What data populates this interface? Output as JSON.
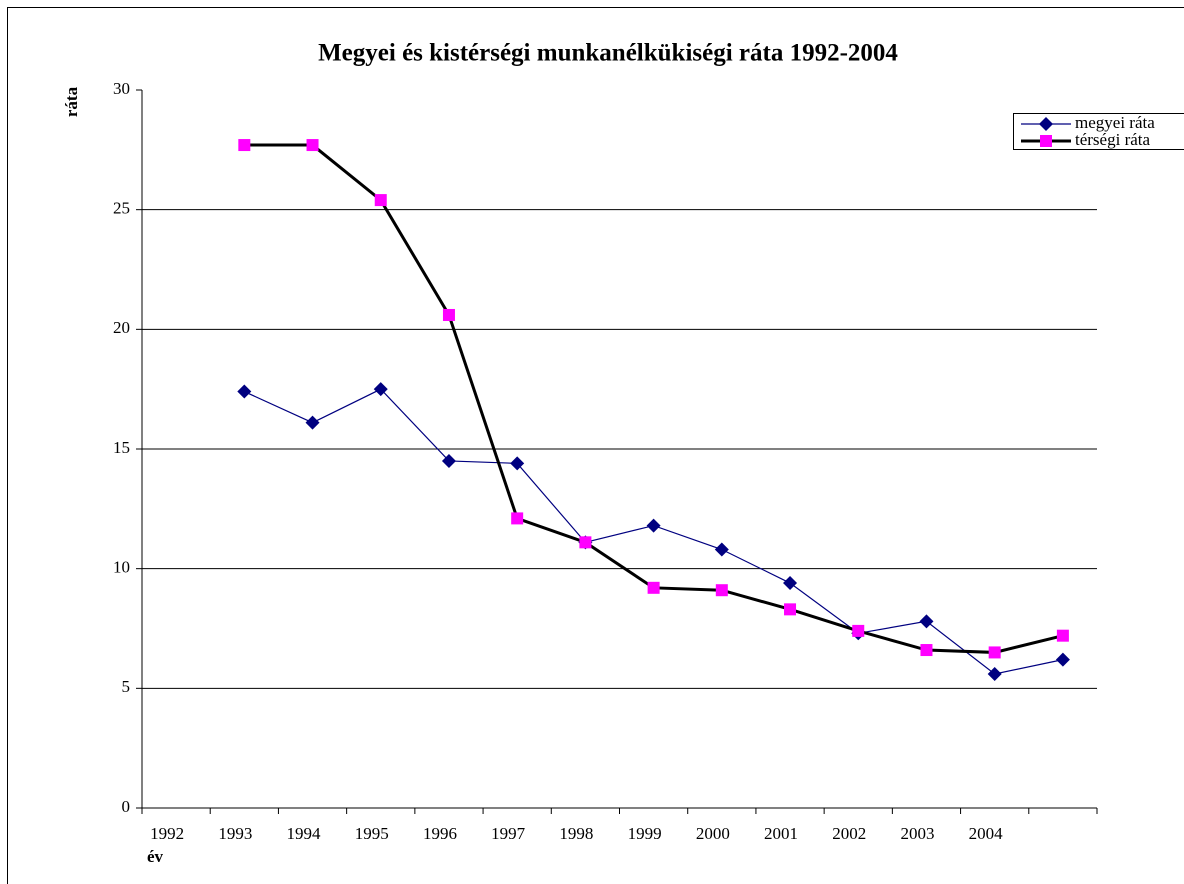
{
  "chart_data": {
    "type": "line",
    "title": "Megyei és kistérségi munkanélkükiségi ráta 1992-2004",
    "y_label": "ráta",
    "x_label": "év",
    "categories": [
      "1992",
      "1993",
      "1994",
      "1995",
      "1996",
      "1997",
      "1998",
      "1999",
      "2000",
      "2001",
      "2002",
      "2003",
      "2004",
      null
    ],
    "series": [
      {
        "name": "megyei ráta",
        "color": "#000080",
        "marker": "diamond",
        "values": [
          null,
          17.4,
          16.1,
          17.5,
          14.5,
          14.4,
          11.1,
          11.8,
          10.8,
          9.4,
          7.3,
          7.8,
          5.6,
          6.2
        ]
      },
      {
        "name": "térségi ráta",
        "color": "#FF00FF",
        "line_color": "#000000",
        "marker": "square",
        "values": [
          null,
          27.7,
          27.7,
          25.4,
          20.6,
          12.1,
          11.1,
          9.2,
          9.1,
          8.3,
          7.4,
          6.6,
          6.5,
          7.2
        ]
      }
    ],
    "ylim": [
      0,
      30
    ],
    "yticks": [
      0,
      5,
      10,
      15,
      20,
      25,
      30
    ],
    "grid": true,
    "legend": "top-right"
  }
}
